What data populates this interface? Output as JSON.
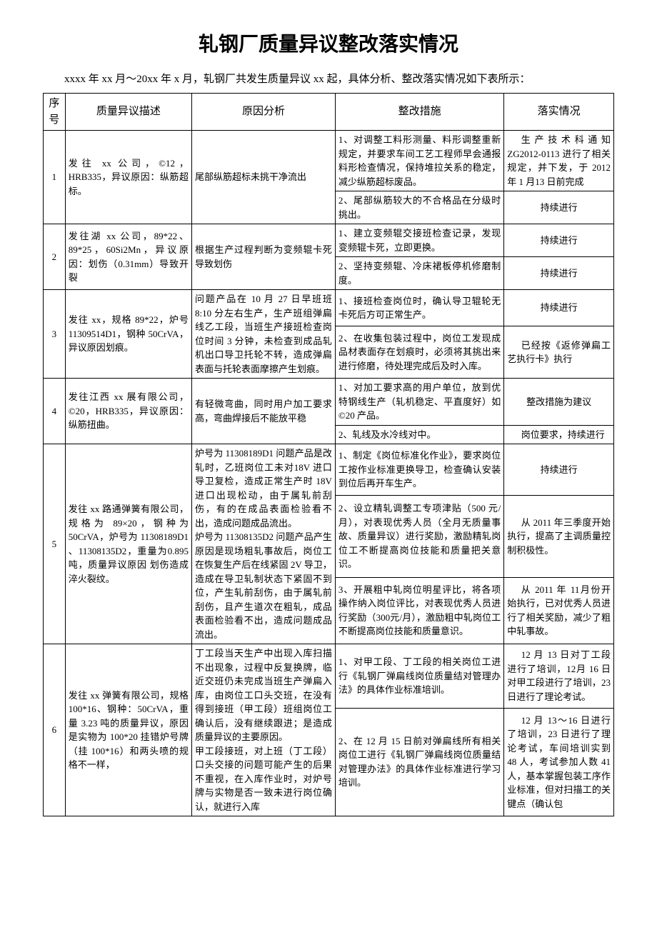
{
  "title": "轧钢厂质量异议整改落实情况",
  "intro": "xxxx 年 xx 月～20xx 年 x 月，轧钢厂共发生质量异议 xx 起，具体分析、整改落实情况如下表所示：",
  "headers": {
    "seq": "序号",
    "desc": "质量异议描述",
    "cause": "原因分析",
    "action": "整改措施",
    "status": "落实情况"
  },
  "rows": [
    {
      "seq": "1",
      "desc": "发往 xx 公司，©12，HRB335，异议原因：纵筋超标。",
      "cause": "尾部纵筋超标未挑干净流出",
      "actions": [
        {
          "a": "1、对调整工料形测量、料形调整重新规定，并要求车间工艺工程师早会通报料形检查情况，保持堆拉关系的稳定，减少纵筋超标废品。",
          "s": "生产技术科通知 ZG2012-0113 进行了相关规定，并下发，于 2012 年 1 月13 日前完成"
        },
        {
          "a": "2、尾部纵筋较大的不合格品在分级时挑出。",
          "s": "持续进行"
        }
      ]
    },
    {
      "seq": "2",
      "desc": "发往湖 xx 公司，89*22、89*25，60Si2Mn，异议原因：划伤（0.31mm）导致开裂",
      "cause": "根据生产过程判断为变频辊卡死导致划伤",
      "actions": [
        {
          "a": "1、建立变频辊交接班检查记录，发现变频辊卡死，立即更换。",
          "s": "持续进行"
        },
        {
          "a": "2、坚持变频辊、冷床裙板停机修磨制度。",
          "s": "持续进行"
        }
      ]
    },
    {
      "seq": "3",
      "desc": "发往 xx，规格 89*22，炉号 11309514D1，钢种 50CrVA，异议原因划痕。",
      "cause": "问题产品在 10 月 27 日早班班 8:10 分左右生产，生产班组弹扁线乙工段，当班生产接班检查岗位时间 3 分钟，未检查到成品轧机出口导卫托轮不转，造成弹扁表面与托轮表面摩擦产生划痕。",
      "actions": [
        {
          "a": "1、接班检查岗位时，确认导卫辊轮无卡死后方可正常生产。",
          "s": "持续进行"
        },
        {
          "a": "2、在收集包装过程中，岗位工发现成品材表面存在划痕时，必须将其挑出来进行修磨，待处理完成后及时入库。",
          "s": "已经按《返修弹扁工艺执行卡》执行"
        }
      ]
    },
    {
      "seq": "4",
      "desc": "发往江西 xx 展有限公司，©20，HRB335，异议原因：纵筋扭曲。",
      "cause": "有轻微弯曲，同时用户加工要求高，弯曲焊接后不能放平稳",
      "actions": [
        {
          "a": "1、对加工要求高的用户单位，放到优特钢线生产（轧机稳定、平直度好）如©20 产品。",
          "s": "整改措施为建议"
        },
        {
          "a": "2、轧线及水冷线对中。",
          "s": "岗位要求，持续进行"
        }
      ]
    },
    {
      "seq": "5",
      "desc": "发往 xx 路通弹簧有限公司，规格为 89×20，钢种为 50CrVA，炉号为 11308189D1 、11308135D2，重量为0.895 吨，质量异议原因 划伤造成淬火裂纹。",
      "cause": "炉号为 11308189D1 问题产品是改轧时，乙班岗位工未对18V 进口导卫复检，造成正常生产时 18V 进口出现松动，由于属轧前刮伤，有的在成品表面检验看不出，造成问题成品流出。\n炉号为 11308135D2 问题产品产生原因是现场粗轧事故后，岗位工在恢复生产后在线紧固 2V 导卫，造成在导卫轧制状态下紧固不到位，产生轧前刮伤，由于属轧前刮伤，且产生道次在粗轧，成品表面检验看不出，造成问题成品流出。",
      "actions": [
        {
          "a": "1、制定《岗位标准化作业》，要求岗位工按作业标准更换导卫，检查确认安装到位后再开车生产。",
          "s": "持续进行"
        },
        {
          "a": "2、设立精轧调整工专项津贴（500 元/月），对表现优秀人员（全月无质量事故、质量异议）进行奖励，激励精轧岗位工不断提高岗位技能和质量把关意识。",
          "s": "从 2011 年三季度开始执行，提高了主调质量控制积极性。"
        },
        {
          "a": "3、开展粗中轧岗位明星评比，将各项操作纳入岗位评比，对表现优秀人员进行奖励（300元/月），激励粗中轧岗位工不断提高岗位技能和质量意识。",
          "s": "从 2011 年 11月份开始执行，已对优秀人员进行了相关奖励，减少了粗中轧事故。"
        }
      ]
    },
    {
      "seq": "6",
      "desc": "发往 xx 弹簧有限公司，规格 100*16、钢种：50CrVA，重量 3.23 吨的质量异议，原因是实物为 100*20 挂错炉号牌（挂 100*16）和两头喷的规格不一样，",
      "cause": "丁工段当天生产中出现入库扫描不出现象，过程中反复换牌，临近交班仍未完成当班生产弹扁入库，由岗位工口头交班，在没有得到接班（甲工段）班组岗位工确认后，没有继续跟进；是造成质量异议的主要原因。\n甲工段接班，对上班（丁工段）口头交接的问题可能产生的后果不重视，在入库作业时，对炉号牌与实物是否一致未进行岗位确认，就进行入库",
      "actions": [
        {
          "a": "1、对甲工段、丁工段的相关岗位工进行《轧钢厂弹扁线岗位质量结对管理办法》的具体作业标准培训。",
          "s": "12 月 13 日对丁工段进行了培训，12月 16 日对甲工段进行了培训，23 日进行了理论考试。"
        },
        {
          "a": "2、在 12 月 15 日前对弹扁线所有相关岗位工进行《轧钢厂弹扁线岗位质量结对管理办法》的具体作业标准进行学习培训。",
          "s": "12 月 13～16 日进行了培训，23 日进行了理论考试，车间培训实到 48 人，考试参加人数 41 人，基本掌握包装工序作业标准，但对扫描工的关键点（确认包"
        }
      ]
    }
  ]
}
